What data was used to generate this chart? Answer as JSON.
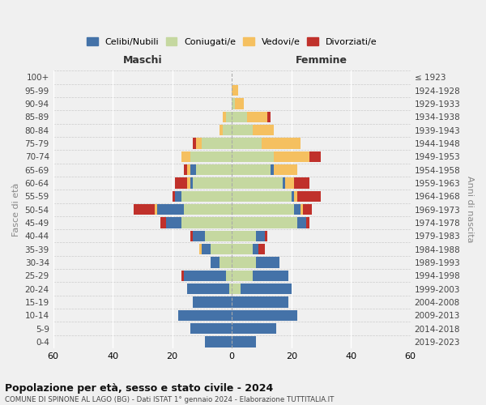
{
  "age_groups": [
    "0-4",
    "5-9",
    "10-14",
    "15-19",
    "20-24",
    "25-29",
    "30-34",
    "35-39",
    "40-44",
    "45-49",
    "50-54",
    "55-59",
    "60-64",
    "65-69",
    "70-74",
    "75-79",
    "80-84",
    "85-89",
    "90-94",
    "95-99",
    "100+"
  ],
  "birth_years": [
    "2019-2023",
    "2014-2018",
    "2009-2013",
    "2004-2008",
    "1999-2003",
    "1994-1998",
    "1989-1993",
    "1984-1988",
    "1979-1983",
    "1974-1978",
    "1969-1973",
    "1964-1968",
    "1959-1963",
    "1954-1958",
    "1949-1953",
    "1944-1948",
    "1939-1943",
    "1934-1938",
    "1929-1933",
    "1924-1928",
    "≤ 1923"
  ],
  "males": {
    "celibi": [
      9,
      14,
      18,
      13,
      14,
      14,
      3,
      3,
      4,
      5,
      9,
      2,
      1,
      2,
      0,
      0,
      0,
      0,
      0,
      0,
      0
    ],
    "coniugati": [
      0,
      0,
      0,
      0,
      1,
      2,
      4,
      7,
      9,
      17,
      16,
      17,
      13,
      12,
      14,
      10,
      3,
      2,
      0,
      0,
      0
    ],
    "vedovi": [
      0,
      0,
      0,
      0,
      0,
      0,
      0,
      1,
      0,
      0,
      1,
      0,
      1,
      1,
      3,
      2,
      1,
      1,
      0,
      0,
      0
    ],
    "divorziati": [
      0,
      0,
      0,
      0,
      0,
      1,
      0,
      0,
      1,
      2,
      7,
      1,
      4,
      1,
      0,
      1,
      0,
      0,
      0,
      0,
      0
    ]
  },
  "females": {
    "nubili": [
      8,
      15,
      22,
      19,
      17,
      12,
      8,
      2,
      3,
      3,
      2,
      1,
      1,
      1,
      0,
      0,
      0,
      0,
      0,
      0,
      0
    ],
    "coniugate": [
      0,
      0,
      0,
      0,
      3,
      7,
      8,
      7,
      8,
      22,
      21,
      20,
      17,
      13,
      14,
      10,
      7,
      5,
      1,
      0,
      0
    ],
    "vedove": [
      0,
      0,
      0,
      0,
      0,
      0,
      0,
      0,
      0,
      0,
      1,
      1,
      3,
      8,
      12,
      13,
      7,
      7,
      3,
      2,
      0
    ],
    "divorziate": [
      0,
      0,
      0,
      0,
      0,
      0,
      0,
      2,
      1,
      1,
      3,
      8,
      5,
      0,
      4,
      0,
      0,
      1,
      0,
      0,
      0
    ]
  },
  "colors": {
    "celibi": "#4472a8",
    "coniugati": "#c5d8a0",
    "vedovi": "#f5c060",
    "divorziati": "#c0312b"
  },
  "xlim": 60,
  "title": "Popolazione per età, sesso e stato civile - 2024",
  "subtitle": "COMUNE DI SPINONE AL LAGO (BG) - Dati ISTAT 1° gennaio 2024 - Elaborazione TUTTITALIA.IT",
  "ylabel": "Fasce di età",
  "ylabel_right": "Anni di nascita",
  "legend_labels": [
    "Celibi/Nubili",
    "Coniugati/e",
    "Vedovi/e",
    "Divorziati/e"
  ],
  "maschi_label": "Maschi",
  "femmine_label": "Femmine",
  "background_color": "#f0f0f0",
  "grid_color": "#ffffff"
}
